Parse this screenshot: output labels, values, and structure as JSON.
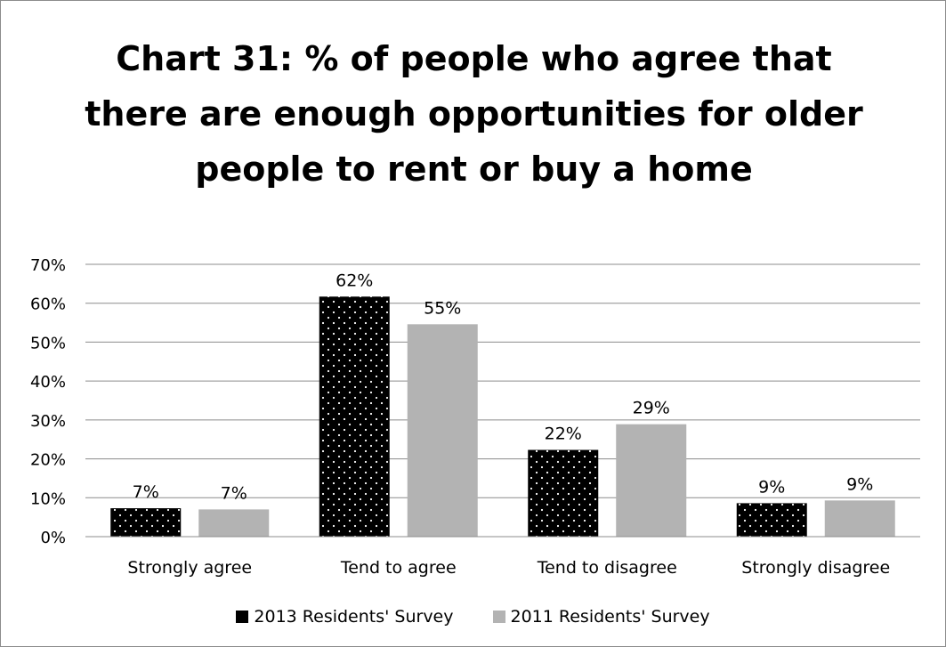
{
  "chart_data": {
    "type": "bar",
    "title_lines": [
      "Chart 31: % of people who agree that",
      "there are enough opportunities for older",
      "people to rent or buy a home"
    ],
    "categories": [
      "Strongly agree",
      "Tend to agree",
      "Tend to disagree",
      "Strongly disagree"
    ],
    "series": [
      {
        "name": "2013 Residents' Survey",
        "values": [
          7.3,
          61.7,
          22.3,
          8.6
        ],
        "labels": [
          "7%",
          "62%",
          "22%",
          "9%"
        ],
        "color": "#000000",
        "pattern": "dotted"
      },
      {
        "name": "2011 Residents' Survey",
        "values": [
          7.0,
          54.6,
          28.9,
          9.3
        ],
        "labels": [
          "7%",
          "55%",
          "29%",
          "9%"
        ],
        "color": "#b3b3b3",
        "pattern": "solid"
      }
    ],
    "ylim": [
      0,
      70
    ],
    "yticks": [
      0,
      10,
      20,
      30,
      40,
      50,
      60,
      70
    ],
    "ytick_labels": [
      "0%",
      "10%",
      "20%",
      "30%",
      "40%",
      "50%",
      "60%",
      "70%"
    ],
    "grid": true,
    "legend_position": "bottom"
  }
}
